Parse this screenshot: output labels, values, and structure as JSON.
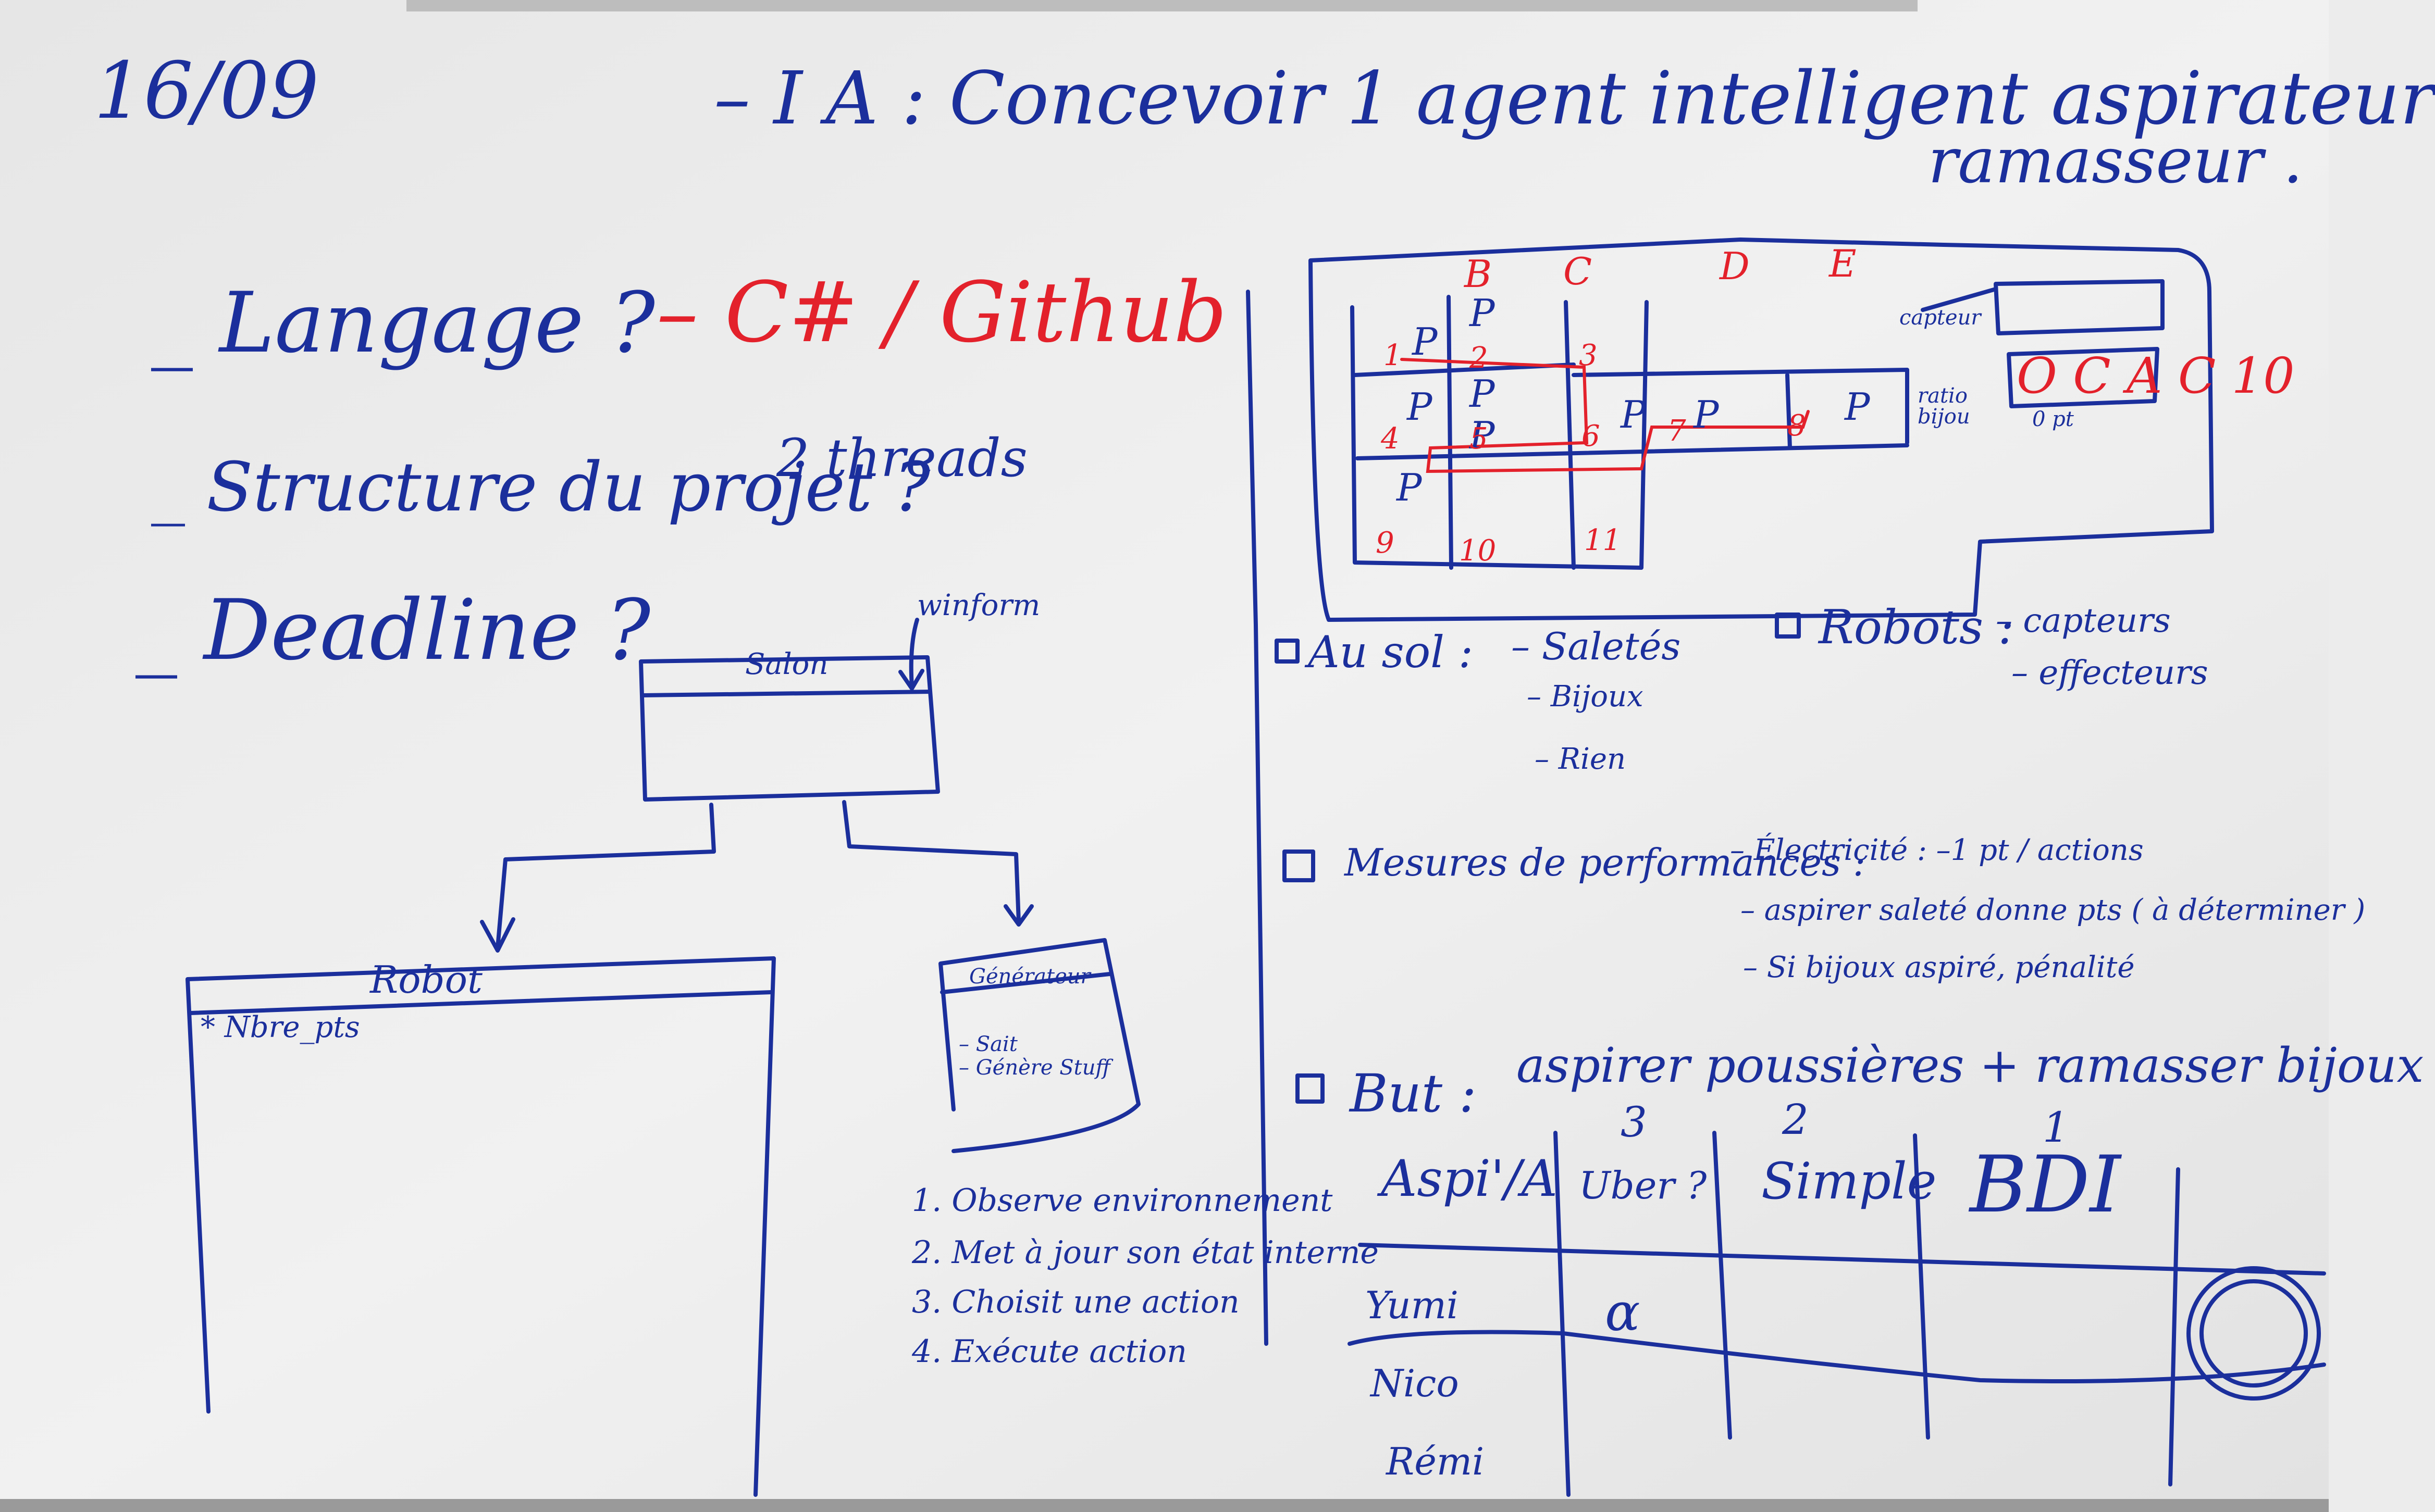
{
  "date": "16/09",
  "title": {
    "line1": "– I A : Concevoir 1 agent intelligent aspirateur",
    "line2": "ramasseur ."
  },
  "questions": [
    {
      "text": "_ Langage ?",
      "answer": "– C# / Github",
      "answer_color": "#e3212b"
    },
    {
      "text": "_ Structure du projet ?",
      "answer": "2 threads"
    },
    {
      "text": "_ Deadline ?",
      "answer": ""
    }
  ],
  "class_diagram": {
    "winform_note": "winform",
    "salon": "Salon",
    "robot": "Robot",
    "robot_attr": "* Nbre_pts",
    "generator": "Générateur",
    "generator_items": [
      "– Sait",
      "– Génère Stuff"
    ]
  },
  "steps": [
    "1. Observe environnement",
    "2. Met à jour son état interne",
    "3. Choisit une action",
    "4. Exécute action"
  ],
  "grid_sketch": {
    "col_letters": [
      "B",
      "C",
      "D",
      "E"
    ],
    "cells": [
      "P",
      "P",
      "P",
      "P",
      "P",
      "P",
      "P",
      "P",
      "P"
    ],
    "red_numbers": [
      "1",
      "2",
      "3",
      "4",
      "5",
      "6",
      "7",
      "8",
      "9",
      "10",
      "11"
    ],
    "capteur_note": "capteur",
    "ratio_note": "ratio bijou",
    "score": "O C A C 10",
    "score_sub": "0 pt"
  },
  "au_sol": {
    "heading": "Au sol :",
    "items": [
      "– Saletés",
      "– Bijoux",
      "– Rien"
    ]
  },
  "robots": {
    "heading": "Robots :",
    "items": [
      "– capteurs",
      "– effecteurs"
    ]
  },
  "mesures": {
    "heading": "Mesures de performances :",
    "items": [
      "– Électricité : –1 pt / actions",
      "– aspirer saleté donne pts ( à déterminer )",
      "– Si bijoux aspiré, pénalité"
    ]
  },
  "but": {
    "heading": "But :",
    "text": "aspirer poussières + ramasser bijoux"
  },
  "table": {
    "numbers": [
      "3",
      "2",
      "1"
    ],
    "headers": [
      "Aspi'/A",
      "Uber ?",
      "Simple",
      "BDI"
    ],
    "rows": [
      {
        "name": "Yumi",
        "values": [
          "α",
          "",
          ""
        ]
      },
      {
        "name": "Nico",
        "values": [
          "",
          "",
          ""
        ]
      },
      {
        "name": "Rémi",
        "values": [
          "",
          "",
          ""
        ]
      }
    ]
  }
}
